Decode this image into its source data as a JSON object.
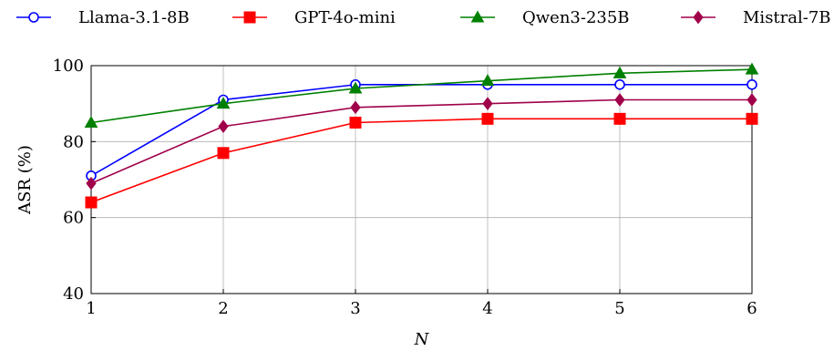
{
  "chart_data": {
    "type": "line",
    "title": "",
    "xlabel": "N",
    "ylabel": "ASR (%)",
    "x": [
      1,
      2,
      3,
      4,
      5,
      6
    ],
    "xlim": [
      1,
      6
    ],
    "ylim": [
      40,
      100
    ],
    "yticks": [
      40,
      60,
      80,
      100
    ],
    "grid": true,
    "legend": "top",
    "series": [
      {
        "name": "Llama-3.1-8B",
        "values": [
          71,
          91,
          95,
          95,
          95,
          95
        ],
        "color": "#0000ff",
        "marker": "circle-open"
      },
      {
        "name": "GPT-4o-mini",
        "values": [
          64,
          77,
          85,
          86,
          86,
          86
        ],
        "color": "#ff0000",
        "marker": "square"
      },
      {
        "name": "Qwen3-235B",
        "values": [
          85,
          90,
          94,
          96,
          98,
          99
        ],
        "color": "#008000",
        "marker": "triangle"
      },
      {
        "name": "Mistral-7B",
        "values": [
          69,
          84,
          89,
          90,
          91,
          91
        ],
        "color": "#a0004a",
        "marker": "diamond"
      }
    ]
  }
}
